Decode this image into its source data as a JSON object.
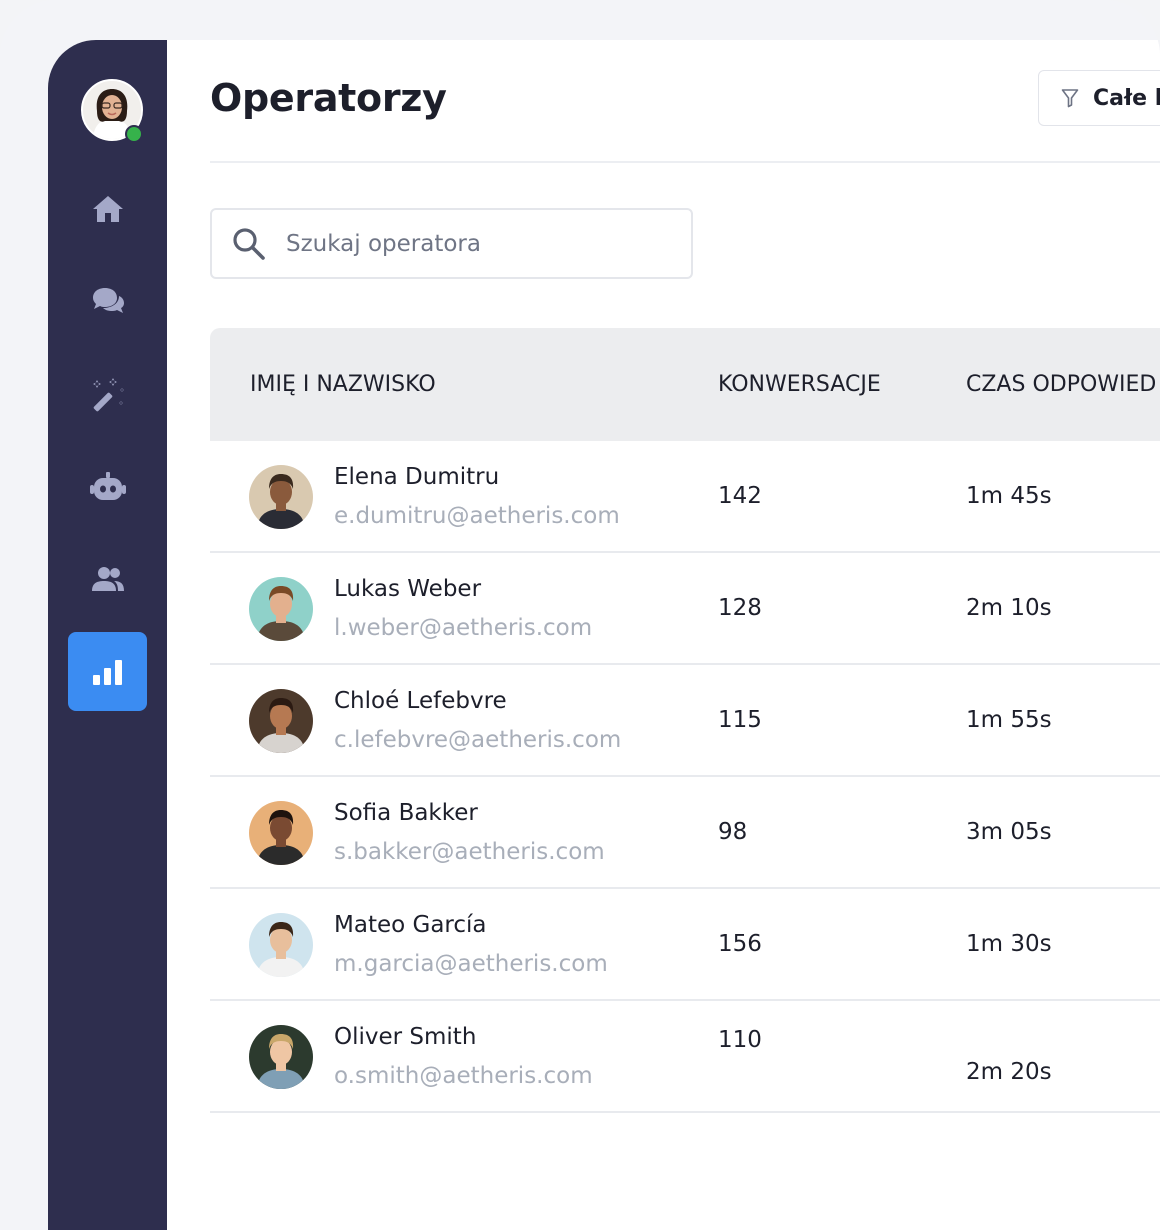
{
  "page": {
    "title": "Operatorzy",
    "filter_label": "Całe k"
  },
  "search": {
    "placeholder": "Szukaj operatora"
  },
  "sidebar": {
    "items": [
      {
        "icon": "home-icon"
      },
      {
        "icon": "chat-icon"
      },
      {
        "icon": "magic-wand-icon"
      },
      {
        "icon": "bot-icon"
      },
      {
        "icon": "users-icon"
      },
      {
        "icon": "bar-chart-icon",
        "active": true
      }
    ]
  },
  "table": {
    "headers": [
      "IMIĘ I NAZWISKO",
      "KONWERSACJE",
      "CZAS ODPOWIED"
    ],
    "rows": [
      {
        "name": "Elena Dumitru",
        "email": "e.dumitru@aetheris.com",
        "conversations": "142",
        "time": "1m 45s",
        "avatar_bg": "#d9c9b0",
        "skin": "#8a5a3c",
        "hair": "#3a2a1e",
        "shirt": "#2a2c35"
      },
      {
        "name": "Lukas Weber",
        "email": "l.weber@aetheris.com",
        "conversations": "128",
        "time": "2m 10s",
        "avatar_bg": "#8fd1c9",
        "skin": "#e3b08e",
        "hair": "#7a4a26",
        "shirt": "#5a4a3a"
      },
      {
        "name": "Chloé Lefebvre",
        "email": "c.lefebvre@aetheris.com",
        "conversations": "115",
        "time": "1m 55s",
        "avatar_bg": "#4d3a2c",
        "skin": "#b67952",
        "hair": "#2b1a12",
        "shirt": "#d7d3cf"
      },
      {
        "name": "Sofia Bakker",
        "email": "s.bakker@aetheris.com",
        "conversations": "98",
        "time": "3m 05s",
        "avatar_bg": "#e8b078",
        "skin": "#7a4a32",
        "hair": "#1e130e",
        "shirt": "#2b2b2b"
      },
      {
        "name": "Mateo García",
        "email": "m.garcia@aetheris.com",
        "conversations": "156",
        "time": "1m 30s",
        "avatar_bg": "#cfe4ee",
        "skin": "#e8bf9c",
        "hair": "#3a2618",
        "shirt": "#f2f2f2"
      },
      {
        "name": "Oliver Smith",
        "email": "o.smith@aetheris.com",
        "conversations": "110",
        "time": "2m 20s",
        "avatar_bg": "#2c3a2e",
        "skin": "#efc6a4",
        "hair": "#c9a76a",
        "shirt": "#7f9fb5"
      }
    ]
  },
  "colors": {
    "sidebar": "#2e2e4e",
    "accent": "#3b8cf2",
    "online": "#36b24b"
  }
}
